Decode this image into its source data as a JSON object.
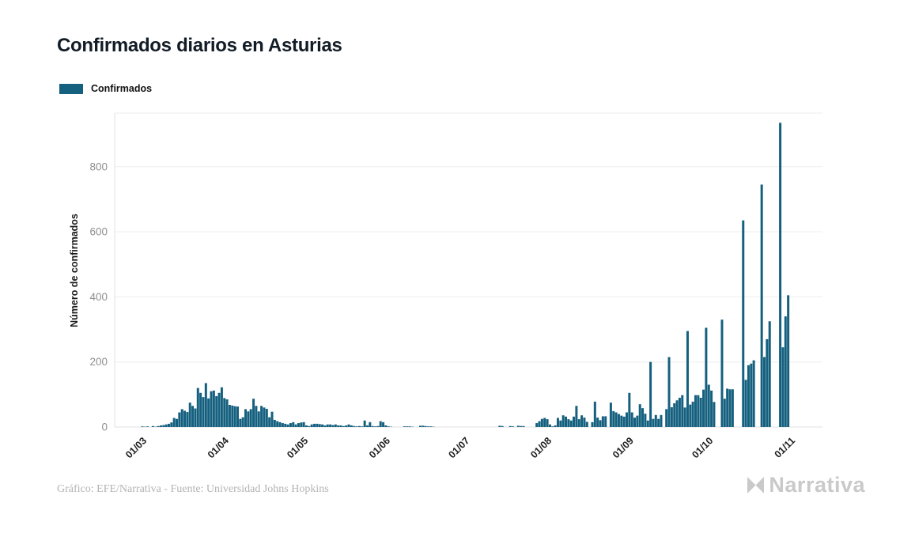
{
  "header": {
    "title": "Confirmados diarios en Asturias"
  },
  "legend": {
    "label": "Confirmados",
    "swatch_color": "#15607f"
  },
  "chart_data": {
    "type": "bar",
    "title": "Confirmados diarios en Asturias",
    "series_name": "Confirmados",
    "xlabel": "",
    "ylabel": "Número de confirmados",
    "y_ticks": [
      0,
      200,
      400,
      600,
      800
    ],
    "ylim": [
      0,
      965
    ],
    "grid": "horizontal",
    "legend_position": "top-left",
    "bar_color": "#15607f",
    "x_unit": "day",
    "x_ticks": [
      {
        "label": "01/03",
        "day": 0
      },
      {
        "label": "01/04",
        "day": 31
      },
      {
        "label": "01/05",
        "day": 61
      },
      {
        "label": "01/06",
        "day": 92
      },
      {
        "label": "01/07",
        "day": 122
      },
      {
        "label": "01/08",
        "day": 153
      },
      {
        "label": "01/09",
        "day": 184
      },
      {
        "label": "01/10",
        "day": 214
      },
      {
        "label": "01/11",
        "day": 245
      }
    ],
    "values": [
      2,
      1,
      2,
      0,
      3,
      1,
      3,
      5,
      6,
      8,
      10,
      14,
      28,
      25,
      45,
      55,
      50,
      46,
      75,
      65,
      57,
      120,
      105,
      92,
      135,
      88,
      110,
      112,
      95,
      105,
      122,
      89,
      85,
      68,
      66,
      64,
      63,
      25,
      30,
      55,
      48,
      55,
      87,
      65,
      48,
      65,
      60,
      56,
      30,
      47,
      22,
      18,
      15,
      12,
      10,
      8,
      12,
      15,
      8,
      12,
      14,
      15,
      5,
      3,
      8,
      10,
      10,
      9,
      8,
      5,
      8,
      8,
      6,
      8,
      5,
      5,
      3,
      5,
      8,
      5,
      3,
      2,
      3,
      2,
      20,
      5,
      15,
      3,
      2,
      3,
      18,
      15,
      5,
      2,
      1,
      0,
      0,
      0,
      0,
      2,
      2,
      2,
      1,
      0,
      0,
      4,
      4,
      3,
      2,
      2,
      1,
      0,
      0,
      0,
      0,
      0,
      0,
      0,
      0,
      0,
      0,
      0,
      0,
      0,
      0,
      0,
      0,
      0,
      0,
      0,
      0,
      0,
      0,
      0,
      0,
      4,
      3,
      0,
      0,
      3,
      2,
      0,
      4,
      3,
      3,
      0,
      0,
      0,
      0,
      12,
      18,
      25,
      28,
      24,
      8,
      2,
      5,
      28,
      20,
      36,
      32,
      24,
      20,
      32,
      65,
      24,
      36,
      29,
      16,
      0,
      15,
      78,
      29,
      21,
      33,
      33,
      0,
      75,
      49,
      45,
      40,
      35,
      32,
      45,
      105,
      45,
      29,
      35,
      70,
      58,
      41,
      20,
      200,
      25,
      37,
      25,
      37,
      0,
      55,
      215,
      61,
      73,
      82,
      90,
      98,
      60,
      295,
      69,
      78,
      98,
      98,
      90,
      115,
      305,
      130,
      112,
      77,
      0,
      0,
      330,
      87,
      118,
      116,
      116,
      0,
      0,
      0,
      635,
      145,
      190,
      195,
      205,
      0,
      0,
      745,
      215,
      270,
      325,
      0,
      0,
      0,
      935,
      245,
      340,
      405
    ]
  },
  "footer": {
    "credit": "Gráfico: EFE/Narrativa - Fuente: Universidad Johns Hopkins",
    "brand": "Narrativa"
  },
  "colors": {
    "bar": "#15607f",
    "title_text": "#121c26",
    "y_tick_text": "#8f8f8f",
    "x_tick_text": "#1f1f1f",
    "grid_line": "#ededed",
    "axis_line": "#e2e2e2",
    "footer_text": "#b3b3b3",
    "brand_text": "#c9c9c9"
  }
}
